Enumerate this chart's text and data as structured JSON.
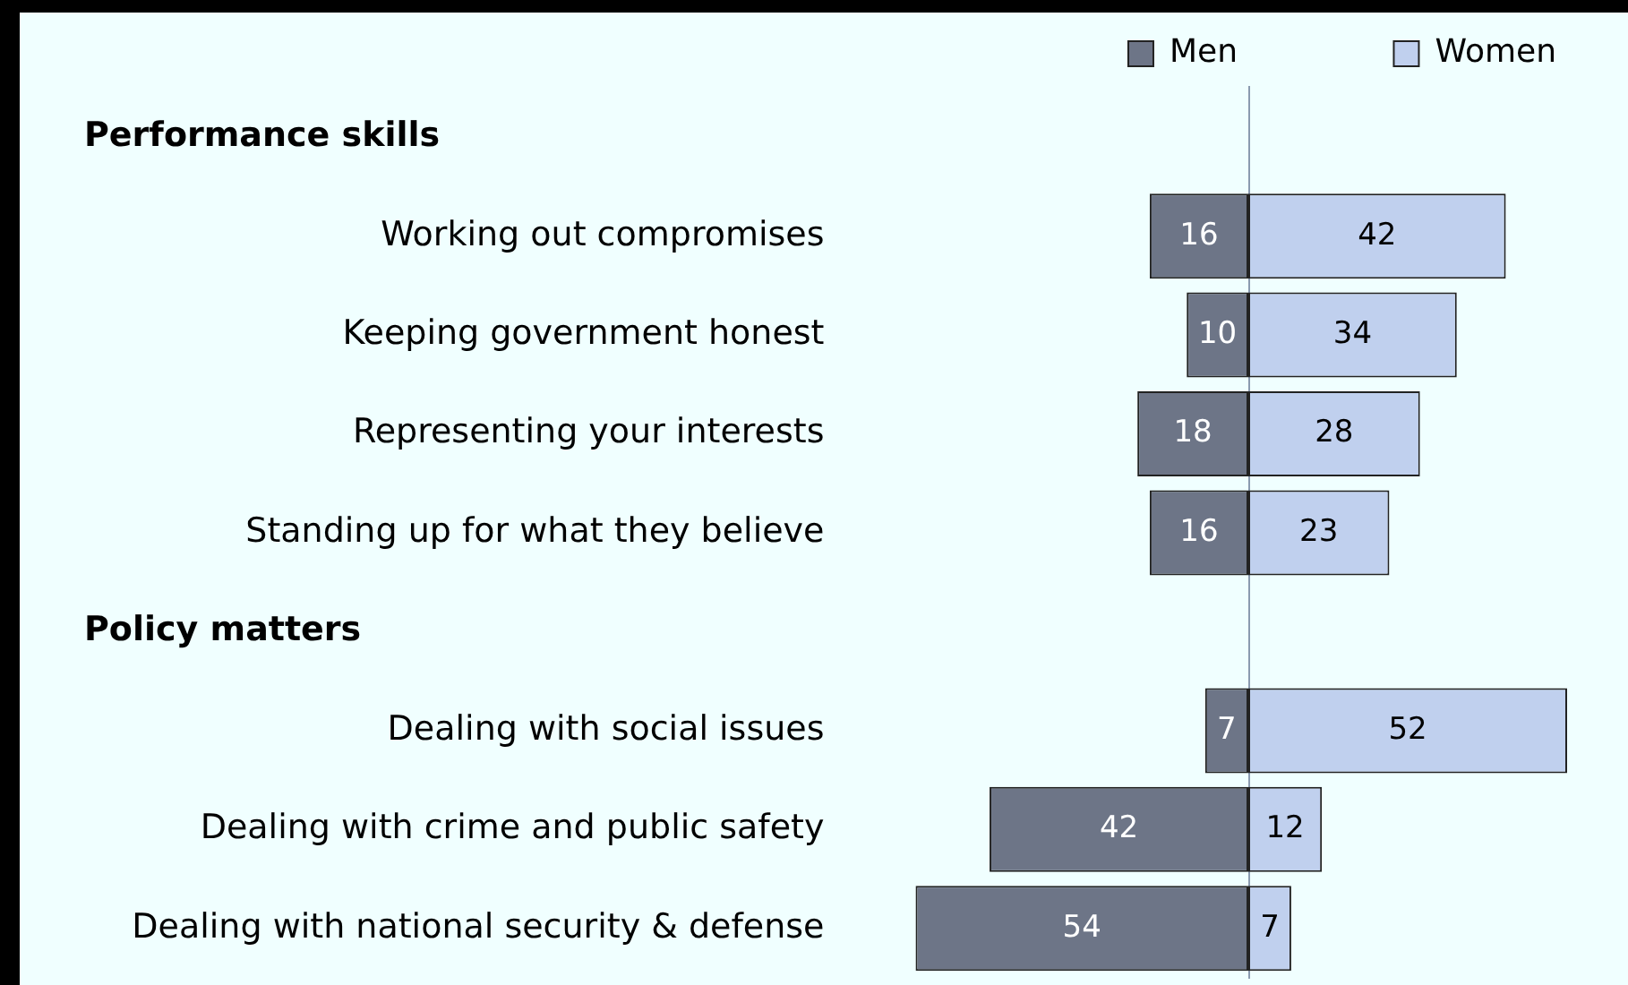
{
  "chart_data": [
    {
      "type": "bar",
      "orientation": "horizontal",
      "data_labels": true,
      "legend": "top right",
      "tick_labels": "y",
      "xlim": [
        54,
        0
      ],
      "annotations": [
        "Performance skills",
        "Policy matters"
      ],
      "categories": [
        null,
        "Working out compromises",
        "Keeping government honest",
        "Representing your interests",
        "Standing up for what they believe",
        null,
        "Dealing with social issues",
        "Dealing with crime and public safety",
        "Dealing with national security & defense"
      ],
      "series": [
        {
          "name": "Men",
          "color": "#6d7587",
          "values": [
            null,
            16,
            10,
            18,
            16,
            null,
            7,
            42,
            54
          ]
        }
      ]
    },
    {
      "type": "bar",
      "orientation": "horizontal",
      "data_labels": true,
      "legend": "top right",
      "tick_labels": false,
      "xlim": [
        0,
        52
      ],
      "categories": [
        null,
        null,
        null,
        null,
        null,
        null,
        null,
        null,
        null
      ],
      "series": [
        {
          "name": "Women",
          "color": "#c0d0ee",
          "values": [
            null,
            42,
            34,
            28,
            23,
            null,
            52,
            12,
            7
          ]
        }
      ]
    }
  ]
}
